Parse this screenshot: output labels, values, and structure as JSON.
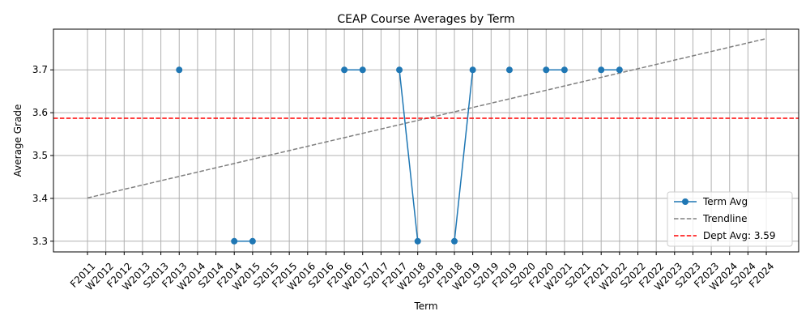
{
  "chart_data": {
    "type": "line",
    "title": "CEAP Course Averages by Term",
    "xlabel": "Term",
    "ylabel": "Average Grade",
    "categories": [
      "F2011",
      "W2012",
      "F2012",
      "W2013",
      "S2013",
      "F2013",
      "W2014",
      "S2014",
      "F2014",
      "W2015",
      "S2015",
      "F2015",
      "W2016",
      "S2016",
      "F2016",
      "W2017",
      "S2017",
      "F2017",
      "W2018",
      "S2018",
      "F2018",
      "W2019",
      "S2019",
      "F2019",
      "S2020",
      "F2020",
      "W2021",
      "S2021",
      "F2021",
      "W2022",
      "S2022",
      "F2022",
      "W2023",
      "S2023",
      "F2023",
      "W2024",
      "S2024",
      "F2024"
    ],
    "ylim": [
      3.275,
      3.795
    ],
    "yticks": [
      3.3,
      3.4,
      3.5,
      3.6,
      3.7
    ],
    "ytick_labels": [
      "3.3",
      "3.4",
      "3.5",
      "3.6",
      "3.7"
    ],
    "series": [
      {
        "name": "Term Avg",
        "color": "#1f77b4",
        "values": [
          null,
          null,
          null,
          null,
          null,
          3.7,
          null,
          null,
          3.3,
          3.3,
          null,
          null,
          null,
          null,
          3.7,
          3.7,
          null,
          3.7,
          3.3,
          null,
          3.3,
          3.7,
          null,
          3.7,
          null,
          3.7,
          3.7,
          null,
          3.7,
          3.7,
          null,
          null,
          null,
          null,
          null,
          null,
          null,
          null
        ]
      }
    ],
    "trendline": {
      "name": "Trendline",
      "color": "#808080",
      "start": 3.401,
      "end": 3.773
    },
    "reference_line": {
      "name": "Dept Avg: 3.59",
      "color": "#ff0000",
      "value": 3.587
    },
    "grid": true,
    "legend_position": "lower-right"
  }
}
